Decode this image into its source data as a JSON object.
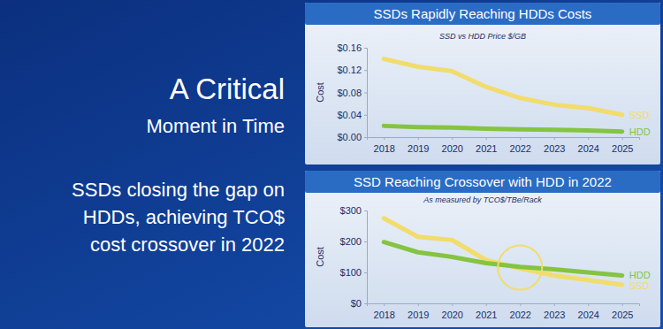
{
  "slide": {
    "title": "A Critical",
    "subtitle": "Moment in Time",
    "body": [
      "SSDs closing the gap on",
      "HDDs, achieving TCO$",
      "cost crossover in 2022"
    ]
  },
  "chart_data": [
    {
      "type": "line",
      "title": "SSDs Rapidly Reaching HDDs Costs",
      "subtitle": "SSD vs HDD Price $/GB",
      "y_label": "Cost",
      "categories": [
        "2018",
        "2019",
        "2020",
        "2021",
        "2022",
        "2023",
        "2024",
        "2025"
      ],
      "series": [
        {
          "name": "SSD",
          "color": "#f2dc6b",
          "values": [
            0.14,
            0.126,
            0.118,
            0.09,
            0.07,
            0.058,
            0.052,
            0.04
          ]
        },
        {
          "name": "HDD",
          "color": "#84c441",
          "values": [
            0.02,
            0.018,
            0.017,
            0.015,
            0.014,
            0.013,
            0.012,
            0.01
          ]
        }
      ],
      "ylim": [
        0,
        0.16
      ],
      "yticks": [
        {
          "value": 0,
          "label": "$0.00"
        },
        {
          "value": 0.04,
          "label": "$0.04"
        },
        {
          "value": 0.08,
          "label": "$0.08"
        },
        {
          "value": 0.12,
          "label": "$0.12"
        },
        {
          "value": 0.16,
          "label": "$0.16"
        }
      ],
      "grid": false
    },
    {
      "type": "line",
      "title": "SSD Reaching Crossover with HDD in 2022",
      "subtitle": "As measured by TCO$/TBe/Rack",
      "y_label": "Cost",
      "categories": [
        "2018",
        "2019",
        "2020",
        "2021",
        "2022",
        "2023",
        "2024",
        "2025"
      ],
      "series": [
        {
          "name": "SSD",
          "color": "#f2dc6b",
          "values": [
            275,
            215,
            205,
            140,
            113,
            90,
            75,
            60
          ]
        },
        {
          "name": "HDD",
          "color": "#84c441",
          "values": [
            198,
            165,
            150,
            130,
            118,
            110,
            100,
            90
          ]
        }
      ],
      "ylim": [
        0,
        300
      ],
      "yticks": [
        {
          "value": 0,
          "label": "$0"
        },
        {
          "value": 100,
          "label": "$100"
        },
        {
          "value": 200,
          "label": "$200"
        },
        {
          "value": 300,
          "label": "$300"
        }
      ],
      "grid": false
    }
  ]
}
